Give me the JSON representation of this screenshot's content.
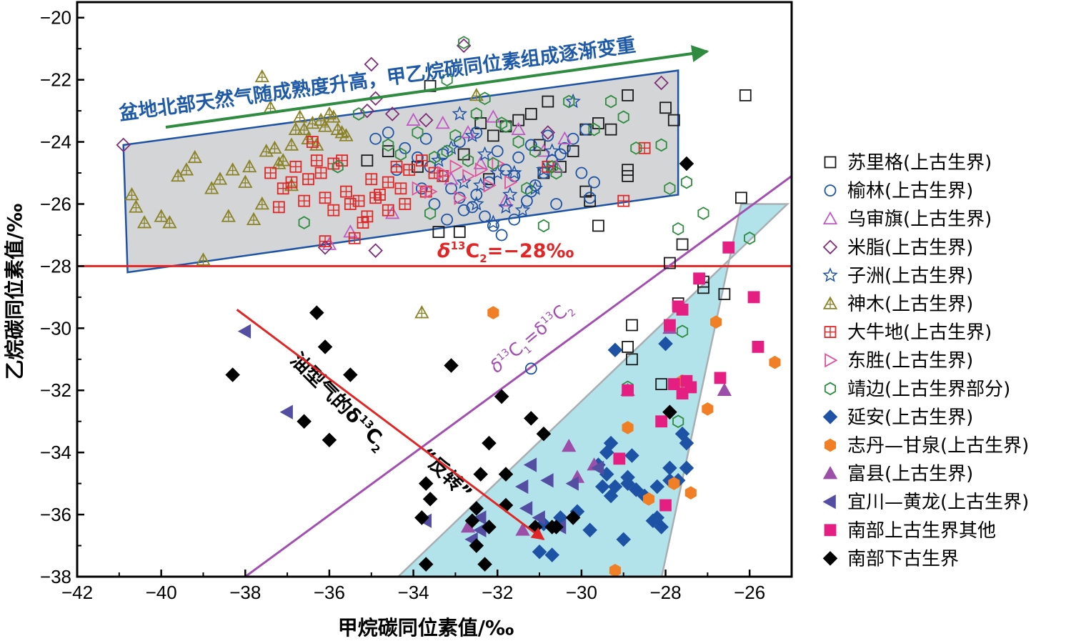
{
  "chart_data": {
    "type": "scatter",
    "xlabel": "甲烷碳同位素值/‰",
    "ylabel": "乙烷碳同位素值/‰",
    "xlim": [
      -42,
      -25
    ],
    "ylim": [
      -38,
      -19.5
    ],
    "xticks": [
      -42,
      -40,
      -38,
      -36,
      -34,
      -32,
      -30,
      -28,
      -26
    ],
    "yticks": [
      -38,
      -36,
      -34,
      -32,
      -30,
      -28,
      -26,
      -24,
      -22,
      -20
    ],
    "xtick_labels": [
      "−42",
      "−40",
      "−38",
      "−36",
      "−34",
      "−32",
      "−30",
      "−28",
      "−26"
    ],
    "ytick_labels": [
      "−38",
      "−36",
      "−34",
      "−32",
      "−30",
      "−28",
      "−26",
      "−24",
      "−22",
      "−20"
    ],
    "grid": false,
    "legend_position": "right",
    "annotations": {
      "trend_top": "盆地北部天然气随成熟度升高，甲乙烷碳同位素组成逐渐变重",
      "threshold_prefix": "δ",
      "threshold_sup": "13",
      "threshold_main": "C",
      "threshold_sub": "2",
      "threshold_suffix": "=−28‰",
      "equal_d": "δ",
      "equal_sup1": "13",
      "equal_c1": "C",
      "equal_sub1": "1",
      "equal_mid": "=δ",
      "equal_sup2": "13",
      "equal_c2": "C",
      "equal_sub2": "2",
      "reversal_line1_a": "油型气的δ",
      "reversal_line1_sup": "13",
      "reversal_line1_b": "C",
      "reversal_line1_sub": "2",
      "reversal_line2": "“反转”"
    },
    "reference_lines": {
      "horizontal_y": -28,
      "equal_line": [
        [
          -38,
          -38
        ],
        [
          -25,
          -25.1
        ]
      ],
      "reversal_arrow": [
        [
          -38.2,
          -29.4
        ],
        [
          -30.9,
          -36.8
        ]
      ]
    },
    "regions": {
      "north": [
        [
          -40.9,
          -24.1
        ],
        [
          -27.7,
          -21.7
        ],
        [
          -27.7,
          -25.7
        ],
        [
          -40.8,
          -28.2
        ]
      ],
      "south": [
        [
          -34.4,
          -38.05
        ],
        [
          -28.1,
          -38.05
        ],
        [
          -26.2,
          -26
        ],
        [
          -25.1,
          -26
        ]
      ]
    },
    "colors": {
      "north_fill": "#d4d5d6",
      "north_stroke": "#1d52a5",
      "south_fill": "#b2e3ea",
      "south_stroke": "#a8aeb2",
      "trend_arrow": "#2e8b3f",
      "trend_text": "#1e5aa8",
      "threshold": "#e02626",
      "equal_line": "#a24fb0",
      "reversal_arrow": "#e02626"
    },
    "series": [
      {
        "name": "苏里格(上古生界)",
        "marker": "square",
        "filled": false,
        "color": "#1a1a1a",
        "x": [
          -33.6,
          -32.4,
          -32.1,
          -31.8,
          -31.5,
          -31.2,
          -30.8,
          -30.2,
          -29.9,
          -29.6,
          -29.3,
          -28.9,
          -28.9,
          -28.9,
          -28.0,
          -27.8,
          -27.6,
          -29.8,
          -29.6,
          -28.9,
          -28.8,
          -28.8,
          -28.1,
          -27.9,
          -27.7,
          -27.1,
          -27.1,
          -26.6,
          -26.2,
          -26.1,
          -35.1,
          -34.6,
          -32.8,
          -32.2,
          -31.0,
          -30.5,
          -29.9,
          -33.4,
          -32.9,
          -30.9,
          -33.9
        ],
        "y": [
          -22.2,
          -23.4,
          -23.8,
          -23.5,
          -23.3,
          -23.1,
          -22.7,
          -24.3,
          -23.6,
          -23.4,
          -23.6,
          -22.5,
          -24.9,
          -25.1,
          -22.9,
          -23.3,
          -27.3,
          -25.9,
          -26.7,
          -30.6,
          -29.9,
          -31.0,
          -31.8,
          -27.9,
          -29.2,
          -28.5,
          -28.7,
          -28.9,
          -25.8,
          -22.5,
          -24.6,
          -24.3,
          -24.4,
          -25.2,
          -24.1,
          -24.8,
          -25.6,
          -26.9,
          -26.9,
          -25.0,
          -24.8
        ]
      },
      {
        "name": "榆林(上古生界)",
        "marker": "circle",
        "filled": false,
        "color": "#1d52a5",
        "x": [
          -34.6,
          -34.2,
          -33.9,
          -33.6,
          -33.3,
          -33.1,
          -32.9,
          -32.6,
          -32.3,
          -32.1,
          -31.9,
          -31.6,
          -31.3,
          -31.1,
          -30.9,
          -30.7,
          -30.4,
          -30.2,
          -29.9,
          -34.4,
          -33.8,
          -33.5,
          -33.2,
          -32.8,
          -32.5,
          -32.2,
          -31.8,
          -31.5,
          -31.2,
          -30.8,
          -30.5,
          -30.0,
          -29.7,
          -33.7,
          -33.3,
          -32.9,
          -32.5,
          -32.0,
          -31.6,
          -31.2,
          -30.6,
          -34.9,
          -31.2,
          -29.8
        ],
        "y": [
          -23.7,
          -24.2,
          -24.5,
          -24.8,
          -25.1,
          -25.5,
          -25.8,
          -26.1,
          -26.4,
          -26.7,
          -27.0,
          -26.5,
          -25.9,
          -25.4,
          -25.0,
          -24.6,
          -24.2,
          -23.9,
          -23.6,
          -24.9,
          -25.5,
          -26.0,
          -26.5,
          -26.2,
          -25.7,
          -25.3,
          -24.9,
          -24.5,
          -24.1,
          -23.8,
          -24.4,
          -25.0,
          -25.3,
          -23.9,
          -24.4,
          -24.0,
          -23.7,
          -24.3,
          -25.1,
          -25.6,
          -26.0,
          -23.9,
          -31.3,
          -25.8
        ]
      },
      {
        "name": "乌审旗(上古生界)",
        "marker": "triangle-up",
        "filled": false,
        "color": "#c159c5",
        "x": [
          -36.0,
          -34.0,
          -33.3,
          -32.7,
          -32.1,
          -31.5,
          -30.9,
          -30.4,
          -34.5,
          -33.1,
          -32.4,
          -31.8,
          -30.6,
          -35.5
        ],
        "y": [
          -27.3,
          -23.3,
          -23.4,
          -23.7,
          -23.2,
          -23.6,
          -24.3,
          -23.9,
          -26.3,
          -25.2,
          -24.7,
          -25.9,
          -24.8,
          -26.9
        ]
      },
      {
        "name": "米脂(上古生界)",
        "marker": "diamond",
        "filled": false,
        "color": "#7d2f76",
        "x": [
          -40.9,
          -35.0,
          -34.9,
          -33.7,
          -32.8,
          -30.8,
          -28.1,
          -34.5,
          -35.1,
          -36.1,
          -34.9
        ],
        "y": [
          -24.1,
          -21.5,
          -22.6,
          -23.3,
          -20.9,
          -23.7,
          -22.1,
          -23.1,
          -23.0,
          -27.4,
          -27.5
        ]
      },
      {
        "name": "子洲(上古生界)",
        "marker": "star",
        "filled": false,
        "color": "#1d52a5",
        "x": [
          -32.9,
          -32.6,
          -32.3,
          -32.0,
          -31.7,
          -31.4,
          -31.1,
          -30.9,
          -30.2,
          -33.4,
          -32.8,
          -32.5,
          -32.1,
          -31.8,
          -33.1,
          -32.4,
          -31.6,
          -30.7
        ],
        "y": [
          -23.1,
          -23.8,
          -24.4,
          -25.0,
          -25.7,
          -26.2,
          -25.5,
          -24.9,
          -22.7,
          -24.6,
          -25.3,
          -26.0,
          -26.6,
          -26.1,
          -24.2,
          -25.4,
          -25.0,
          -24.3
        ],
        "star_row": [
          1,
          2,
          3,
          4,
          5,
          6,
          7,
          8,
          9,
          10,
          11,
          12,
          13,
          14,
          15,
          16,
          17,
          18
        ]
      },
      {
        "name": "神木(上古生界)",
        "marker": "triangle-up-cross",
        "filled": false,
        "color": "#8a8226",
        "x": [
          -40.7,
          -40.4,
          -40.0,
          -39.6,
          -39.4,
          -39.2,
          -39.0,
          -38.6,
          -38.3,
          -38.0,
          -37.6,
          -37.3,
          -37.1,
          -36.9,
          -36.7,
          -36.6,
          -36.4,
          -36.2,
          -36.0,
          -35.8,
          -35.6,
          -37.9,
          -37.5,
          -37.2,
          -36.8,
          -36.5,
          -36.3,
          -36.1,
          -35.9,
          -35.7,
          -38.4,
          -37.8,
          -37.4,
          -36.9,
          -37.6,
          -33.8,
          -32.5,
          -38.8,
          -39.8,
          -40.6
        ],
        "y": [
          -25.7,
          -26.6,
          -26.4,
          -25.1,
          -24.9,
          -24.5,
          -27.8,
          -25.2,
          -24.9,
          -25.3,
          -26.0,
          -24.2,
          -24.6,
          -25.4,
          -23.2,
          -23.6,
          -23.4,
          -23.3,
          -23.1,
          -23.6,
          -23.8,
          -24.8,
          -24.3,
          -24.7,
          -23.6,
          -23.9,
          -24.1,
          -23.5,
          -23.2,
          -23.7,
          -26.4,
          -26.5,
          -22.9,
          -24.1,
          -21.9,
          -29.5,
          -22.5,
          -25.5,
          -26.6,
          -26.1
        ]
      },
      {
        "name": "大牛地(上古生界)",
        "marker": "square-cross",
        "filled": false,
        "color": "#e02626",
        "x": [
          -37.4,
          -37.1,
          -36.8,
          -36.5,
          -36.3,
          -36.1,
          -35.9,
          -35.6,
          -35.3,
          -35.1,
          -34.8,
          -34.6,
          -34.3,
          -34.1,
          -33.8,
          -33.5,
          -37.2,
          -36.9,
          -36.6,
          -36.2,
          -35.9,
          -35.5,
          -35.2,
          -34.9,
          -34.6,
          -34.2,
          -33.7,
          -33.3,
          -36.4,
          -35.7,
          -35.0,
          -34.4,
          -36.1,
          -35.4,
          -30.8,
          -29.0,
          -28.5
        ],
        "y": [
          -25.0,
          -25.5,
          -24.8,
          -25.2,
          -24.6,
          -25.8,
          -26.2,
          -25.6,
          -25.9,
          -26.4,
          -25.7,
          -26.2,
          -25.5,
          -24.9,
          -24.6,
          -25.0,
          -26.1,
          -25.3,
          -25.9,
          -25.0,
          -24.7,
          -26.0,
          -26.6,
          -25.8,
          -25.3,
          -26.0,
          -25.6,
          -25.1,
          -24.0,
          -24.6,
          -25.2,
          -24.8,
          -27.2,
          -27.1,
          -24.8,
          -25.9,
          -24.2
        ]
      },
      {
        "name": "东胜(上古生界)",
        "marker": "triangle-right",
        "filled": false,
        "color": "#e0529c",
        "x": [
          -33.0,
          -32.7,
          -32.4,
          -32.2,
          -33.6,
          -33.3,
          -32.0,
          -31.7,
          -33.9,
          -32.9
        ],
        "y": [
          -24.8,
          -25.1,
          -24.9,
          -25.4,
          -25.6,
          -25.0,
          -24.7,
          -25.3,
          -25.5,
          -25.8
        ]
      },
      {
        "name": "靖边(上古生界部分)",
        "marker": "hexagon",
        "filled": false,
        "color": "#2e8b3f",
        "x": [
          -36.6,
          -35.3,
          -33.9,
          -33.2,
          -32.8,
          -32.5,
          -32.3,
          -31.8,
          -31.5,
          -31.1,
          -30.7,
          -30.3,
          -29.7,
          -29.3,
          -29.0,
          -28.7,
          -28.1,
          -27.9,
          -27.7,
          -27.6,
          -27.5,
          -27.1,
          -26.0,
          -34.6,
          -33.5,
          -33.0,
          -32.1,
          -31.3,
          -30.9,
          -35.8,
          -34.3,
          -33.6,
          -31.9,
          -30.6,
          -28.9,
          -27.7,
          -32.7,
          -33.2
        ],
        "y": [
          -26.6,
          -23.1,
          -23.7,
          -22.0,
          -20.8,
          -23.1,
          -22.6,
          -23.5,
          -24.0,
          -24.3,
          -24.8,
          -22.7,
          -23.6,
          -22.7,
          -23.2,
          -24.2,
          -24.1,
          -25.5,
          -26.8,
          -30.1,
          -25.3,
          -26.3,
          -27.1,
          -24.1,
          -24.5,
          -23.8,
          -24.7,
          -25.5,
          -26.7,
          -24.8,
          -24.4,
          -26.3,
          -23.4,
          -25.0,
          -31.9,
          -33.0,
          -24.6,
          -24.3
        ]
      },
      {
        "name": "延安(上古生界)",
        "marker": "diamond",
        "filled": true,
        "color": "#1d52a5",
        "x": [
          -31.0,
          -30.7,
          -30.5,
          -30.1,
          -29.8,
          -29.5,
          -29.4,
          -29.3,
          -29.2,
          -29.0,
          -28.9,
          -28.8,
          -28.7,
          -28.5,
          -28.3,
          -28.2,
          -28.1,
          -28.0,
          -27.9,
          -27.7,
          -27.6,
          -27.5,
          -27.5,
          -27.9,
          -29.3,
          -29.4,
          -29.6,
          -28.9,
          -28.2,
          -29.2,
          -30.9
        ],
        "y": [
          -37.2,
          -37.3,
          -36.1,
          -35.9,
          -36.5,
          -35.1,
          -34.0,
          -33.7,
          -30.7,
          -36.8,
          -35.0,
          -34.1,
          -35.2,
          -35.4,
          -36.2,
          -36.1,
          -36.4,
          -30.5,
          -34.5,
          -34.9,
          -33.4,
          -33.7,
          -34.5,
          -34.9,
          -35.4,
          -34.7,
          -34.4,
          -34.8,
          -35.1,
          -35.1,
          -36.3
        ]
      },
      {
        "name": "志丹—甘泉(上古生界)",
        "marker": "hexagon",
        "filled": true,
        "color": "#f07f25",
        "x": [
          -32.1,
          -29.2,
          -28.9,
          -28.4,
          -27.8,
          -27.6,
          -27.4,
          -27.0,
          -26.8,
          -25.4
        ],
        "y": [
          -29.5,
          -37.8,
          -33.2,
          -35.5,
          -35.0,
          -31.7,
          -35.3,
          -32.6,
          -29.8,
          -31.1
        ]
      },
      {
        "name": "富县(上古生界)",
        "marker": "triangle-up",
        "filled": true,
        "color": "#9b4fa8",
        "x": [
          -32.7,
          -31.4,
          -30.3,
          -30.1,
          -29.7,
          -28.9,
          -27.9,
          -26.6
        ],
        "y": [
          -36.4,
          -36.5,
          -33.8,
          -34.8,
          -34.4,
          -32.0,
          -30.0,
          -32.0
        ]
      },
      {
        "name": "宜川—黄龙(上古生界)",
        "marker": "triangle-left",
        "filled": true,
        "color": "#544ea3",
        "x": [
          -38.0,
          -37.0,
          -33.7,
          -32.6,
          -32.4,
          -31.4,
          -31.2,
          -31.0,
          -30.8,
          -30.5,
          -30.2,
          -29.6,
          -31.3,
          -32.4
        ],
        "y": [
          -30.1,
          -32.7,
          -36.2,
          -36.8,
          -36.5,
          -35.1,
          -34.4,
          -36.1,
          -34.9,
          -36.4,
          -35.0,
          -34.5,
          -35.8,
          -36.1
        ]
      },
      {
        "name": "南部上古生界其他",
        "marker": "square",
        "filled": true,
        "color": "#e51e82",
        "x": [
          -29.1,
          -28.9,
          -28.0,
          -27.9,
          -27.8,
          -27.7,
          -27.6,
          -27.4,
          -27.5,
          -27.2,
          -26.7,
          -26.5,
          -25.9,
          -25.8,
          -28.1,
          -27.6
        ],
        "y": [
          -34.2,
          -32.0,
          -35.7,
          -29.9,
          -31.8,
          -29.3,
          -32.1,
          -31.9,
          -31.7,
          -28.4,
          -31.6,
          -27.4,
          -29.0,
          -30.6,
          -33.0,
          -29.4
        ]
      },
      {
        "name": "南部下古生界",
        "marker": "diamond",
        "filled": true,
        "color": "#000000",
        "x": [
          -38.3,
          -36.6,
          -36.3,
          -36.1,
          -36.0,
          -35.5,
          -33.8,
          -33.7,
          -33.6,
          -33.7,
          -33.1,
          -32.6,
          -32.5,
          -32.5,
          -32.4,
          -32.3,
          -32.2,
          -32.2,
          -31.9,
          -31.8,
          -31.8,
          -31.2,
          -31.1,
          -30.9,
          -30.7,
          -30.6,
          -30.2,
          -27.9,
          -27.5
        ],
        "y": [
          -31.5,
          -33.0,
          -29.5,
          -30.6,
          -33.6,
          -31.5,
          -36.1,
          -35.0,
          -35.5,
          -37.6,
          -31.2,
          -36.2,
          -35.8,
          -37.0,
          -34.7,
          -37.6,
          -33.7,
          -36.4,
          -32.2,
          -35.7,
          -34.7,
          -32.9,
          -36.4,
          -33.4,
          -36.4,
          -36.4,
          -36.1,
          -32.7,
          -24.7
        ]
      }
    ]
  }
}
